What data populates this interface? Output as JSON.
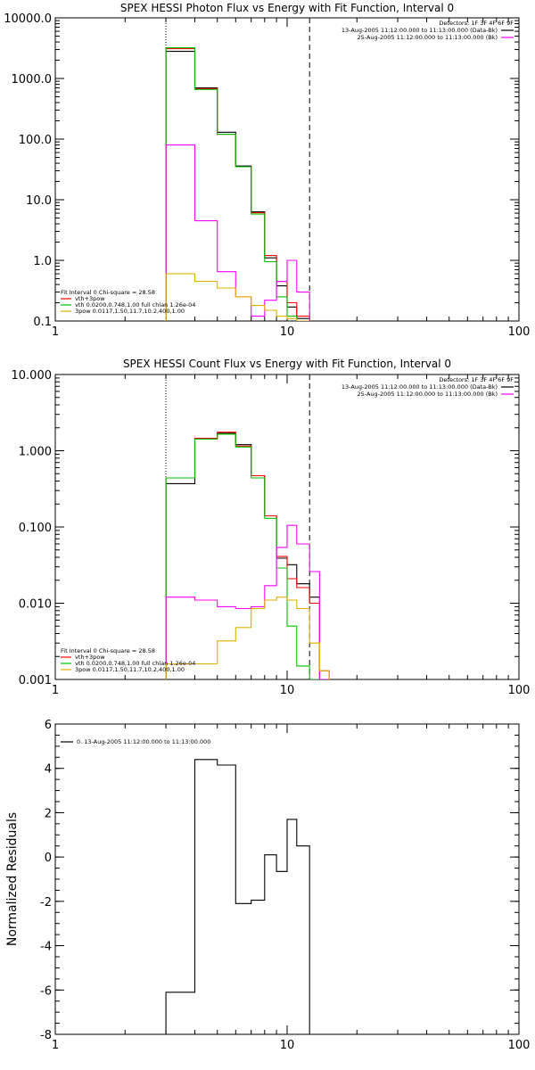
{
  "chart_data": [
    {
      "type": "line",
      "title": "SPEX HESSI Photon Flux vs Energy with Fit Function, Interval 0",
      "xscale": "log",
      "yscale": "log",
      "xlim": [
        1,
        100
      ],
      "ylim": [
        0.1,
        10000
      ],
      "x_ticks": [
        1,
        10,
        100
      ],
      "x_tick_labels": [
        "1",
        "10",
        "100"
      ],
      "y_ticks": [
        0.1,
        1,
        10,
        100,
        1000,
        10000
      ],
      "y_tick_labels": [
        "0.1",
        "1.0",
        "10.0",
        "100.0",
        "1000.0",
        "10000.0"
      ],
      "vlines": [
        {
          "x": 3,
          "style": "dotted"
        },
        {
          "x": 12.5,
          "style": "dashed"
        }
      ],
      "header_lines": [
        {
          "text": "Detectors: 1F 3F 4F 6F 9F",
          "color": "#000000",
          "swatch": false
        },
        {
          "text": "13-Aug-2005 11:12:00.000 to 11:13:00.000 (Data-Bk)",
          "color": "#000000",
          "swatch": true
        },
        {
          "text": "25-Aug-2005 11:12:00.000 to 11:13:00.000 (Bk)",
          "color": "#ff00ff",
          "swatch": true
        }
      ],
      "fit_legend": {
        "title": "Fit Interval 0   Chi-square = 28.58",
        "items": [
          {
            "text": "vth+3pow",
            "color": "#ff0000"
          },
          {
            "text": "vth 0.0200,0.748,1.00  full chian 1.26e-04",
            "color": "#00c000"
          },
          {
            "text": "3pow 0.0117,1.50,11.7,10.2,400,1.00",
            "color": "#e0b000"
          }
        ]
      },
      "bin_edges": [
        3.0,
        4.0,
        5.0,
        6.0,
        7.0,
        8.0,
        9.0,
        10.0,
        11.0,
        12.5
      ],
      "series": [
        {
          "color": "#000000",
          "values": [
            2800,
            700,
            130,
            36,
            6.3,
            1.1,
            0.38,
            0.17,
            0.11
          ]
        },
        {
          "color": "#ff0000",
          "values": [
            3100,
            680,
            120,
            35,
            6.1,
            1.2,
            0.45,
            0.2,
            0.12
          ]
        },
        {
          "color": "#00c000",
          "values": [
            3200,
            660,
            120,
            35,
            5.8,
            0.95,
            0.25,
            0.12,
            0.1
          ]
        },
        {
          "color": "#ff00ff",
          "values": [
            80,
            4.5,
            0.65,
            0.25,
            0.12,
            0.22,
            0.45,
            1.0,
            0.3
          ]
        },
        {
          "color": "#e0b000",
          "values": [
            0.6,
            0.45,
            0.35,
            0.25,
            0.18,
            0.15,
            0.12,
            0.11,
            0.1
          ]
        }
      ]
    },
    {
      "type": "line",
      "title": "SPEX HESSI Count Flux vs Energy with Fit Function, Interval 0",
      "xscale": "log",
      "yscale": "log",
      "xlim": [
        1,
        100
      ],
      "ylim": [
        0.001,
        10
      ],
      "x_ticks": [
        1,
        10,
        100
      ],
      "x_tick_labels": [
        "1",
        "10",
        "100"
      ],
      "y_ticks": [
        0.001,
        0.01,
        0.1,
        1,
        10
      ],
      "y_tick_labels": [
        "0.001",
        "0.010",
        "0.100",
        "1.000",
        "10.000"
      ],
      "vlines": [
        {
          "x": 3,
          "style": "dotted"
        },
        {
          "x": 12.5,
          "style": "dashed"
        }
      ],
      "header_lines": [
        {
          "text": "Detectors: 1F 3F 4F 6F 9F",
          "color": "#000000",
          "swatch": false
        },
        {
          "text": "13-Aug-2005 11:12:00.000 to 11:13:00.000 (Data-Bk)",
          "color": "#000000",
          "swatch": true
        },
        {
          "text": "25-Aug-2005 11:12:00.000 to 11:13:00.000 (Bk)",
          "color": "#ff00ff",
          "swatch": true
        }
      ],
      "fit_legend": {
        "title": "Fit Interval 0   Chi-square = 28.58",
        "items": [
          {
            "text": "vth+3pow",
            "color": "#ff0000"
          },
          {
            "text": "vth 0.0200,0.748,1.00  full chian 1.26e-04",
            "color": "#00c000"
          },
          {
            "text": "3pow 0.0117,1.50,11.7,10.2,400,1.00",
            "color": "#e0b000"
          }
        ]
      },
      "bin_edges": [
        3.0,
        4.0,
        5.0,
        6.0,
        7.0,
        8.0,
        9.0,
        10.0,
        11.0,
        12.5,
        13.8,
        15.2
      ],
      "series": [
        {
          "color": "#000000",
          "values": [
            0.37,
            1.45,
            1.7,
            1.2,
            0.47,
            0.14,
            0.039,
            0.032,
            0.018,
            0.012,
            0.0009
          ]
        },
        {
          "color": "#ff0000",
          "values": [
            0.44,
            1.45,
            1.75,
            1.15,
            0.47,
            0.14,
            0.041,
            0.021,
            0.016,
            0.01,
            0.0013
          ]
        },
        {
          "color": "#00c000",
          "values": [
            0.44,
            1.42,
            1.65,
            1.12,
            0.44,
            0.13,
            0.029,
            0.005,
            0.0015,
            0.0009,
            0.0009
          ]
        },
        {
          "color": "#ff00ff",
          "values": [
            0.012,
            0.011,
            0.009,
            0.0085,
            0.009,
            0.017,
            0.054,
            0.105,
            0.06,
            0.026,
            0.0009
          ]
        },
        {
          "color": "#e0b000",
          "values": [
            0.0016,
            0.0016,
            0.0032,
            0.0048,
            0.0085,
            0.011,
            0.012,
            0.011,
            0.0085,
            0.003,
            0.0013
          ]
        }
      ]
    },
    {
      "type": "line",
      "title": "",
      "xscale": "log",
      "yscale": "linear",
      "xlim": [
        1,
        100
      ],
      "ylim": [
        -8,
        6
      ],
      "ylabel": "Normalized Residuals",
      "x_ticks": [
        1,
        10,
        100
      ],
      "x_tick_labels": [
        "1",
        "10",
        "100"
      ],
      "y_ticks": [
        -8,
        -6,
        -4,
        -2,
        0,
        2,
        4,
        6
      ],
      "y_tick_labels": [
        "-8",
        "-6",
        "-4",
        "-2",
        "0",
        "2",
        "4",
        "6"
      ],
      "legend": [
        {
          "text": "0. 13-Aug-2005 11:12:00.000 to 11:13:00.000",
          "color": "#000000"
        }
      ],
      "bin_edges": [
        3.0,
        4.0,
        5.0,
        6.0,
        7.0,
        8.0,
        9.0,
        10.0,
        11.0,
        12.5
      ],
      "series": [
        {
          "color": "#000000",
          "values": [
            -6.1,
            4.4,
            4.15,
            -2.1,
            -1.95,
            0.1,
            -0.65,
            1.7,
            0.5
          ]
        }
      ]
    }
  ]
}
